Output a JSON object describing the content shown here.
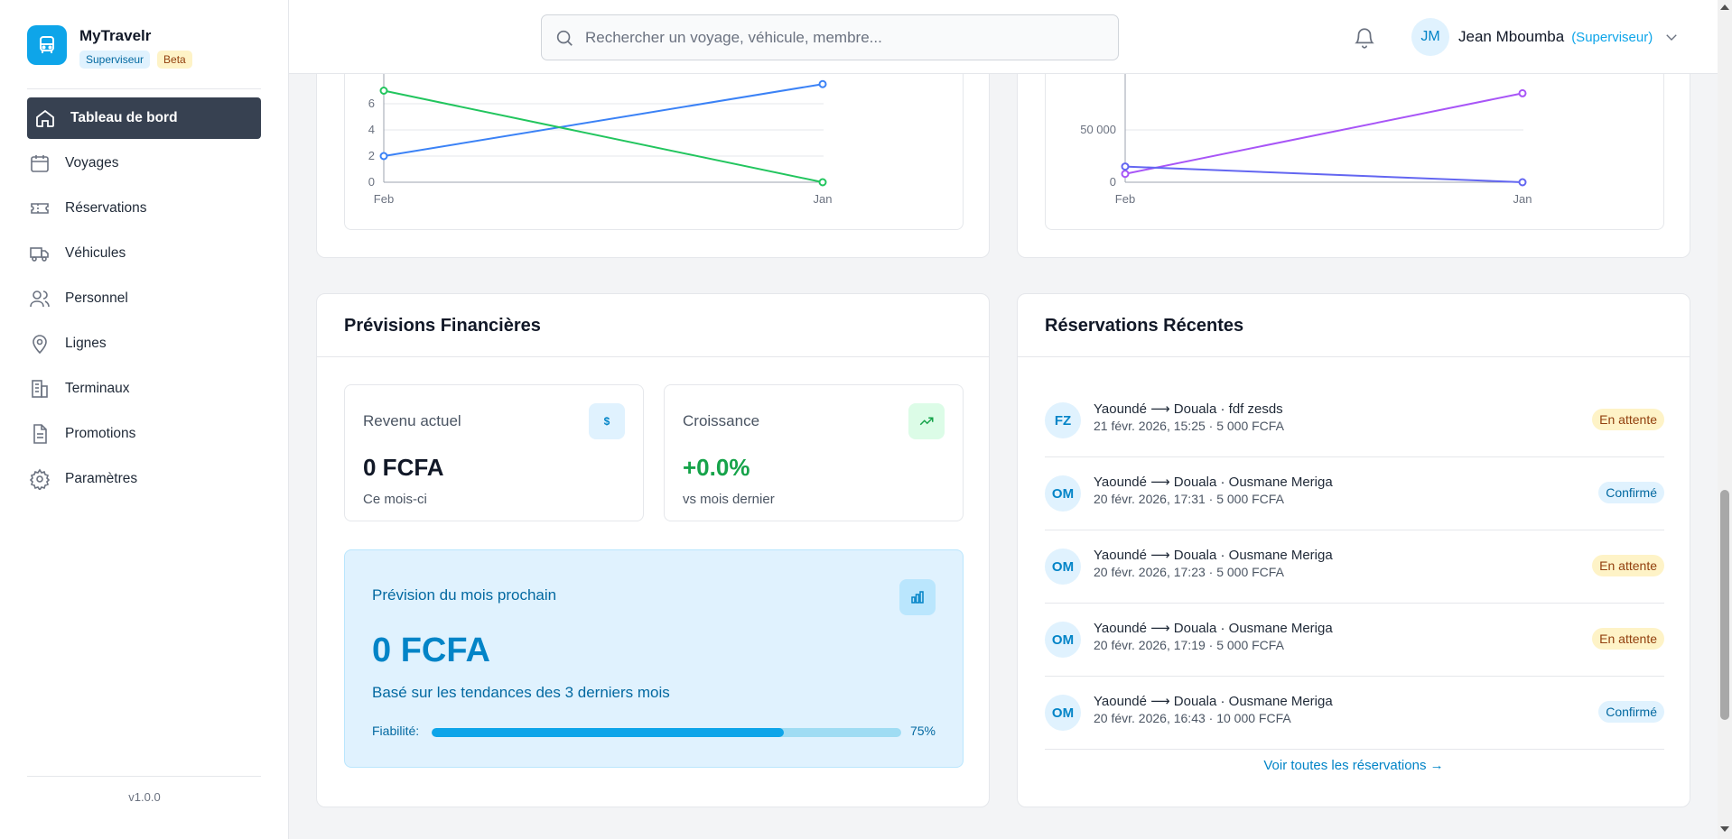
{
  "brand": {
    "name": "MyTravelr",
    "role_badge": "Superviseur",
    "beta_badge": "Beta"
  },
  "nav": [
    {
      "label": "Tableau de bord",
      "icon": "home-icon",
      "active": true
    },
    {
      "label": "Voyages",
      "icon": "calendar-icon",
      "active": false
    },
    {
      "label": "Réservations",
      "icon": "ticket-icon",
      "active": false
    },
    {
      "label": "Véhicules",
      "icon": "truck-icon",
      "active": false
    },
    {
      "label": "Personnel",
      "icon": "users-icon",
      "active": false
    },
    {
      "label": "Lignes",
      "icon": "map-pin-icon",
      "active": false
    },
    {
      "label": "Terminaux",
      "icon": "building-icon",
      "active": false
    },
    {
      "label": "Promotions",
      "icon": "file-icon",
      "active": false
    },
    {
      "label": "Paramètres",
      "icon": "gear-icon",
      "active": false
    }
  ],
  "version": "v1.0.0",
  "search": {
    "placeholder": "Rechercher un voyage, véhicule, membre..."
  },
  "user": {
    "initials": "JM",
    "name": "Jean Mboumba",
    "role": "(Superviseur)"
  },
  "colors": {
    "accent": "#0ea5e9",
    "sidebar_active": "#374151",
    "green": "#22c55e",
    "blue": "#3b82f6",
    "purple": "#a855f7",
    "indigo": "#6366f1"
  },
  "chart_data": [
    {
      "type": "line",
      "x": [
        "Feb",
        "Jan"
      ],
      "yticks": [
        "0",
        "2",
        "4",
        "6"
      ],
      "ylim": [
        0,
        7
      ],
      "series": [
        {
          "color": "#3b82f6",
          "values": [
            2,
            7.5
          ]
        },
        {
          "color": "#22c55e",
          "values": [
            7,
            0
          ]
        }
      ],
      "grid": true
    },
    {
      "type": "line",
      "x": [
        "Feb",
        "Jan"
      ],
      "yticks": [
        "0",
        "50 000"
      ],
      "ylim": [
        0,
        80000
      ],
      "series": [
        {
          "color": "#a855f7",
          "values": [
            8000,
            85000
          ]
        },
        {
          "color": "#6366f1",
          "values": [
            15000,
            0
          ]
        }
      ],
      "grid": true
    }
  ],
  "finance": {
    "title": "Prévisions Financières",
    "current": {
      "label": "Revenu actuel",
      "icon_glyph": "$",
      "value": "0 FCFA",
      "sub": "Ce mois-ci"
    },
    "growth": {
      "label": "Croissance",
      "value": "+0.0%",
      "sub": "vs mois dernier"
    },
    "forecast": {
      "label": "Prévision du mois prochain",
      "value": "0 FCFA",
      "sub": "Basé sur les tendances des 3 derniers mois",
      "reliability_label": "Fiabilité:",
      "reliability_pct": "75%",
      "reliability_value": 0.75
    }
  },
  "reservations": {
    "title": "Réservations Récentes",
    "items": [
      {
        "initials": "FZ",
        "title": "Yaoundé ⟶ Douala · fdf zesds",
        "meta": "21 févr. 2026, 15:25 · 5 000 FCFA",
        "status": "En attente",
        "kind": "wait"
      },
      {
        "initials": "OM",
        "title": "Yaoundé ⟶ Douala · Ousmane Meriga",
        "meta": "20 févr. 2026, 17:31 · 5 000 FCFA",
        "status": "Confirmé",
        "kind": "ok"
      },
      {
        "initials": "OM",
        "title": "Yaoundé ⟶ Douala · Ousmane Meriga",
        "meta": "20 févr. 2026, 17:23 · 5 000 FCFA",
        "status": "En attente",
        "kind": "wait"
      },
      {
        "initials": "OM",
        "title": "Yaoundé ⟶ Douala · Ousmane Meriga",
        "meta": "20 févr. 2026, 17:19 · 5 000 FCFA",
        "status": "En attente",
        "kind": "wait"
      },
      {
        "initials": "OM",
        "title": "Yaoundé ⟶ Douala · Ousmane Meriga",
        "meta": "20 févr. 2026, 16:43 · 10 000 FCFA",
        "status": "Confirmé",
        "kind": "ok"
      }
    ],
    "link": "Voir toutes les réservations →"
  }
}
